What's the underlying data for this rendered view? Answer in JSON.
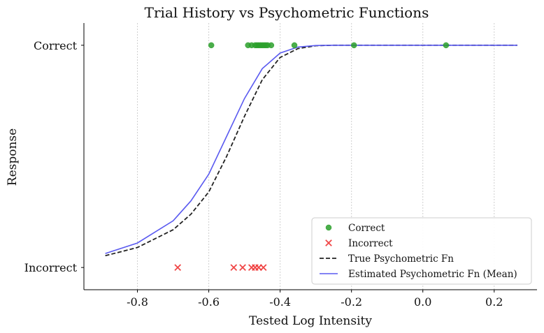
{
  "chart_data": {
    "type": "scatter",
    "title": "Trial History vs Psychometric Functions",
    "xlabel": "Tested Log Intensity",
    "ylabel": "Response",
    "xlim": [
      -0.95,
      0.32
    ],
    "ylim": [
      -0.1,
      1.1
    ],
    "x_ticks": [
      -0.8,
      -0.6,
      -0.4,
      -0.2,
      0.0,
      0.2
    ],
    "x_tick_labels": [
      "-0.8",
      "-0.6",
      "-0.4",
      "-0.2",
      "0.0",
      "0.2"
    ],
    "y_ticks": [
      0,
      1
    ],
    "y_tick_labels": [
      "Incorrect",
      "Correct"
    ],
    "grid": "x-dotted",
    "legend_position": "lower-right",
    "series": [
      {
        "name": "Correct",
        "kind": "points",
        "marker": "circle",
        "color": "#2ca02c",
        "y": 1,
        "x": [
          -0.593,
          -0.49,
          -0.48,
          -0.47,
          -0.465,
          -0.46,
          -0.455,
          -0.45,
          -0.445,
          -0.44,
          -0.435,
          -0.425,
          -0.36,
          -0.193,
          0.065
        ]
      },
      {
        "name": "Incorrect",
        "kind": "points",
        "marker": "x",
        "color": "#ee3333",
        "y": 0,
        "x": [
          -0.687,
          -0.53,
          -0.505,
          -0.48,
          -0.47,
          -0.46,
          -0.447
        ]
      },
      {
        "name": "True Psychometric Fn",
        "kind": "line",
        "style": "dashed",
        "color": "#222222",
        "x": [
          -0.89,
          -0.8,
          -0.7,
          -0.65,
          -0.6,
          -0.55,
          -0.5,
          -0.45,
          -0.4,
          -0.35,
          -0.3,
          -0.25,
          -0.2,
          0.0,
          0.265
        ],
        "y": [
          0.053,
          0.09,
          0.17,
          0.24,
          0.34,
          0.5,
          0.68,
          0.845,
          0.945,
          0.985,
          0.998,
          1.0,
          1.0,
          1.0,
          1.0
        ]
      },
      {
        "name": "Estimated Psychometric Fn (Mean)",
        "kind": "line",
        "style": "solid",
        "color": "#5a5af0",
        "x": [
          -0.89,
          -0.8,
          -0.7,
          -0.65,
          -0.6,
          -0.55,
          -0.5,
          -0.45,
          -0.4,
          -0.35,
          -0.3,
          -0.25,
          -0.2,
          0.0,
          0.265
        ],
        "y": [
          0.063,
          0.11,
          0.21,
          0.3,
          0.42,
          0.59,
          0.76,
          0.895,
          0.965,
          0.992,
          0.999,
          1.0,
          1.0,
          1.0,
          1.0
        ]
      }
    ]
  }
}
